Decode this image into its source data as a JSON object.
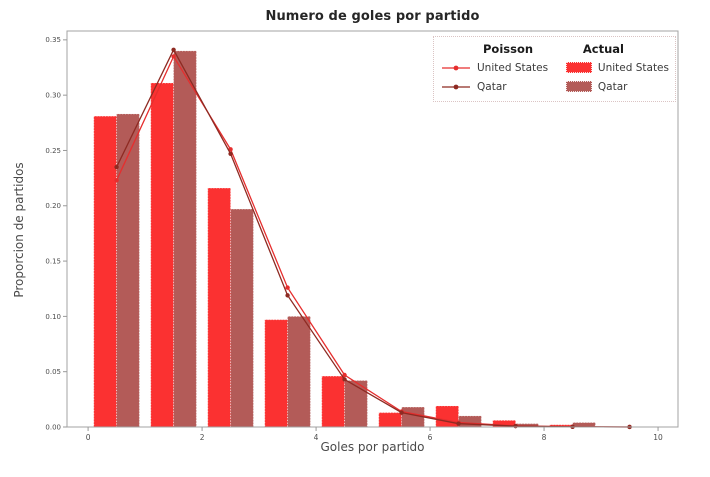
{
  "legend": {
    "poisson_header": "Poisson",
    "actual_header": "Actual"
  },
  "style": {
    "background": "#ffffff",
    "frame_color": "#a3a3a3",
    "tick_color": "#999999",
    "tick_label_color": "#4d4d4d",
    "title_color": "#262626",
    "axis_label_color": "#4a4a4a",
    "legend_border_color": "#dbc4c4",
    "legend_text_color": "#3a3a3a",
    "bar_edge": "rgba(255,255,255,0.7)"
  },
  "chart_data": {
    "type": "bar",
    "subtype": "grouped-histogram-with-poisson-lines",
    "title": "Numero de goles por partido",
    "xlabel": "Goles por partido",
    "ylabel": "Proporcion de partidos",
    "xlim": [
      -0.37,
      10.35
    ],
    "ylim": [
      0,
      0.358
    ],
    "grid": false,
    "legend_position": "upper right",
    "xticks": [
      0,
      2,
      4,
      6,
      8,
      10
    ],
    "xtick_labels": [
      "0",
      "2",
      "4",
      "6",
      "8",
      "10"
    ],
    "ytick_values": [
      0,
      0.05,
      0.1,
      0.15,
      0.2,
      0.25,
      0.3,
      0.35
    ],
    "ytick_labels": [
      "0.00",
      "0.05",
      "0.10",
      "0.15",
      "0.20",
      "0.25",
      "0.30",
      "0.35"
    ],
    "goals": [
      0,
      1,
      2,
      3,
      4,
      5,
      6,
      7,
      8,
      9
    ],
    "bar_series": [
      {
        "name": "United States",
        "group": "Actual",
        "color": "#fb3131",
        "values": [
          0.281,
          0.311,
          0.216,
          0.097,
          0.046,
          0.013,
          0.019,
          0.006,
          0.002,
          0
        ]
      },
      {
        "name": "Qatar",
        "group": "Actual",
        "color": "#b35b58",
        "values": [
          0.283,
          0.34,
          0.197,
          0.1,
          0.042,
          0.018,
          0.01,
          0.003,
          0.004,
          0
        ]
      }
    ],
    "line_series": [
      {
        "name": "United States",
        "group": "Poisson",
        "color": "#e62e2e",
        "x": [
          0.5,
          1.5,
          2.5,
          3.5,
          4.5,
          5.5,
          6.5,
          7.5,
          8.5,
          9.5
        ],
        "values": [
          0.223,
          0.335,
          0.251,
          0.126,
          0.047,
          0.014,
          0.004,
          0.001,
          0.0002,
          3e-05
        ]
      },
      {
        "name": "Qatar",
        "group": "Poisson",
        "color": "#8e2a22",
        "x": [
          0.5,
          1.5,
          2.5,
          3.5,
          4.5,
          5.5,
          6.5,
          7.5,
          8.5,
          9.5
        ],
        "values": [
          0.235,
          0.341,
          0.247,
          0.119,
          0.043,
          0.013,
          0.003,
          0.0008,
          0.0002,
          2e-05
        ]
      }
    ]
  }
}
